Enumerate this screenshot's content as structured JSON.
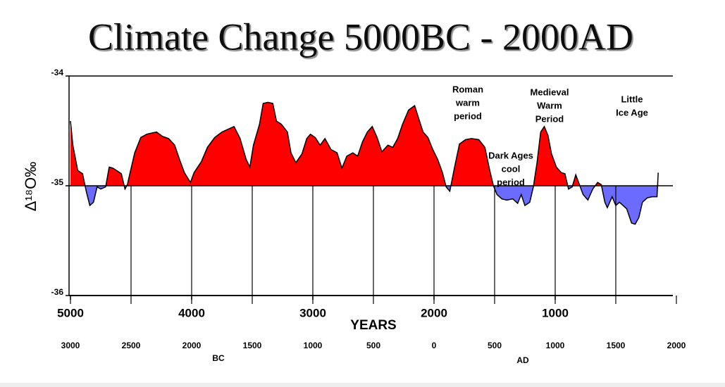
{
  "chart_data": {
    "type": "area",
    "title": "Climate Change 5000BC - 2000AD",
    "ylabel": "Δ¹⁸O‰",
    "xlabel": "YEARS",
    "x2_era_labels": [
      "BC",
      "AD"
    ],
    "xlim": [
      5000,
      0
    ],
    "xticks": [
      5000,
      4000,
      3000,
      2000,
      1000
    ],
    "x2lim": [
      -3000,
      2000
    ],
    "x2ticks": [
      {
        "value": -3000,
        "label": "3000"
      },
      {
        "value": -2500,
        "label": "2500"
      },
      {
        "value": -2000,
        "label": "2000"
      },
      {
        "value": -1500,
        "label": "1500"
      },
      {
        "value": -1000,
        "label": "1000"
      },
      {
        "value": -500,
        "label": "500"
      },
      0,
      500,
      1000,
      1500,
      2000
    ],
    "ylim": [
      -36,
      -34
    ],
    "yticks": [
      -34,
      -35,
      -36
    ],
    "baseline": -35,
    "color_above": "#ff0000",
    "color_below": "#6b6bff",
    "annotations": [
      {
        "lines": [
          "Roman",
          "warm",
          "period"
        ]
      },
      {
        "lines": [
          "Medieval",
          "Warm",
          "Period"
        ]
      },
      {
        "lines": [
          "Little",
          "Ice Age"
        ]
      },
      {
        "lines": [
          "Dark Ages",
          "cool",
          "period"
        ]
      }
    ],
    "x": [
      5000,
      4980,
      4940,
      4900,
      4870,
      4840,
      4810,
      4780,
      4750,
      4710,
      4680,
      4650,
      4620,
      4580,
      4550,
      4530,
      4510,
      4470,
      4420,
      4370,
      4330,
      4290,
      4240,
      4190,
      4140,
      4100,
      4060,
      4010,
      3980,
      3920,
      3870,
      3810,
      3750,
      3690,
      3650,
      3600,
      3550,
      3520,
      3490,
      3440,
      3410,
      3370,
      3330,
      3300,
      3260,
      3210,
      3180,
      3140,
      3090,
      3050,
      3020,
      2980,
      2940,
      2900,
      2850,
      2800,
      2760,
      2720,
      2670,
      2630,
      2590,
      2550,
      2510,
      2470,
      2430,
      2380,
      2340,
      2300,
      2260,
      2210,
      2160,
      2120,
      2090,
      2050,
      2010,
      1970,
      1930,
      1900,
      1870,
      1830,
      1790,
      1740,
      1690,
      1630,
      1580,
      1540,
      1510,
      1480,
      1440,
      1400,
      1350,
      1310,
      1280,
      1250,
      1210,
      1180,
      1150,
      1120,
      1090,
      1060,
      1030,
      990,
      950,
      920,
      890,
      860,
      830,
      800,
      770,
      730,
      690,
      650,
      620,
      590,
      570,
      530,
      500,
      470,
      440,
      410,
      370,
      340,
      310,
      280,
      240,
      200,
      160,
      150
    ],
    "values": [
      -34.41,
      -34.63,
      -34.86,
      -34.89,
      -35.05,
      -35.18,
      -35.15,
      -35.01,
      -35.03,
      -35.01,
      -34.83,
      -34.84,
      -34.86,
      -34.89,
      -35.03,
      -34.99,
      -34.89,
      -34.7,
      -34.56,
      -34.53,
      -34.52,
      -34.51,
      -34.55,
      -34.57,
      -34.63,
      -34.76,
      -34.88,
      -34.97,
      -34.88,
      -34.78,
      -34.65,
      -34.56,
      -34.51,
      -34.48,
      -34.46,
      -34.57,
      -34.76,
      -34.83,
      -34.63,
      -34.44,
      -34.25,
      -34.24,
      -34.25,
      -34.41,
      -34.44,
      -34.51,
      -34.7,
      -34.79,
      -34.71,
      -34.57,
      -34.53,
      -34.56,
      -34.63,
      -34.57,
      -34.67,
      -34.7,
      -34.84,
      -34.73,
      -34.7,
      -34.73,
      -34.6,
      -34.51,
      -34.46,
      -34.56,
      -34.69,
      -34.63,
      -34.65,
      -34.57,
      -34.44,
      -34.31,
      -34.27,
      -34.41,
      -34.51,
      -34.56,
      -34.67,
      -34.76,
      -34.88,
      -35.01,
      -35.05,
      -34.83,
      -34.62,
      -34.58,
      -34.57,
      -34.58,
      -34.65,
      -34.86,
      -35.0,
      -35.08,
      -35.12,
      -35.13,
      -35.12,
      -35.16,
      -35.08,
      -35.18,
      -35.15,
      -35.01,
      -34.79,
      -34.51,
      -34.46,
      -34.54,
      -34.71,
      -34.83,
      -34.88,
      -34.89,
      -35.03,
      -35.01,
      -34.9,
      -34.99,
      -35.08,
      -35.13,
      -35.03,
      -34.97,
      -34.99,
      -35.15,
      -35.2,
      -35.1,
      -35.18,
      -35.15,
      -35.18,
      -35.21,
      -35.34,
      -35.35,
      -35.29,
      -35.15,
      -35.11,
      -35.1,
      -35.1,
      -34.88
    ]
  }
}
